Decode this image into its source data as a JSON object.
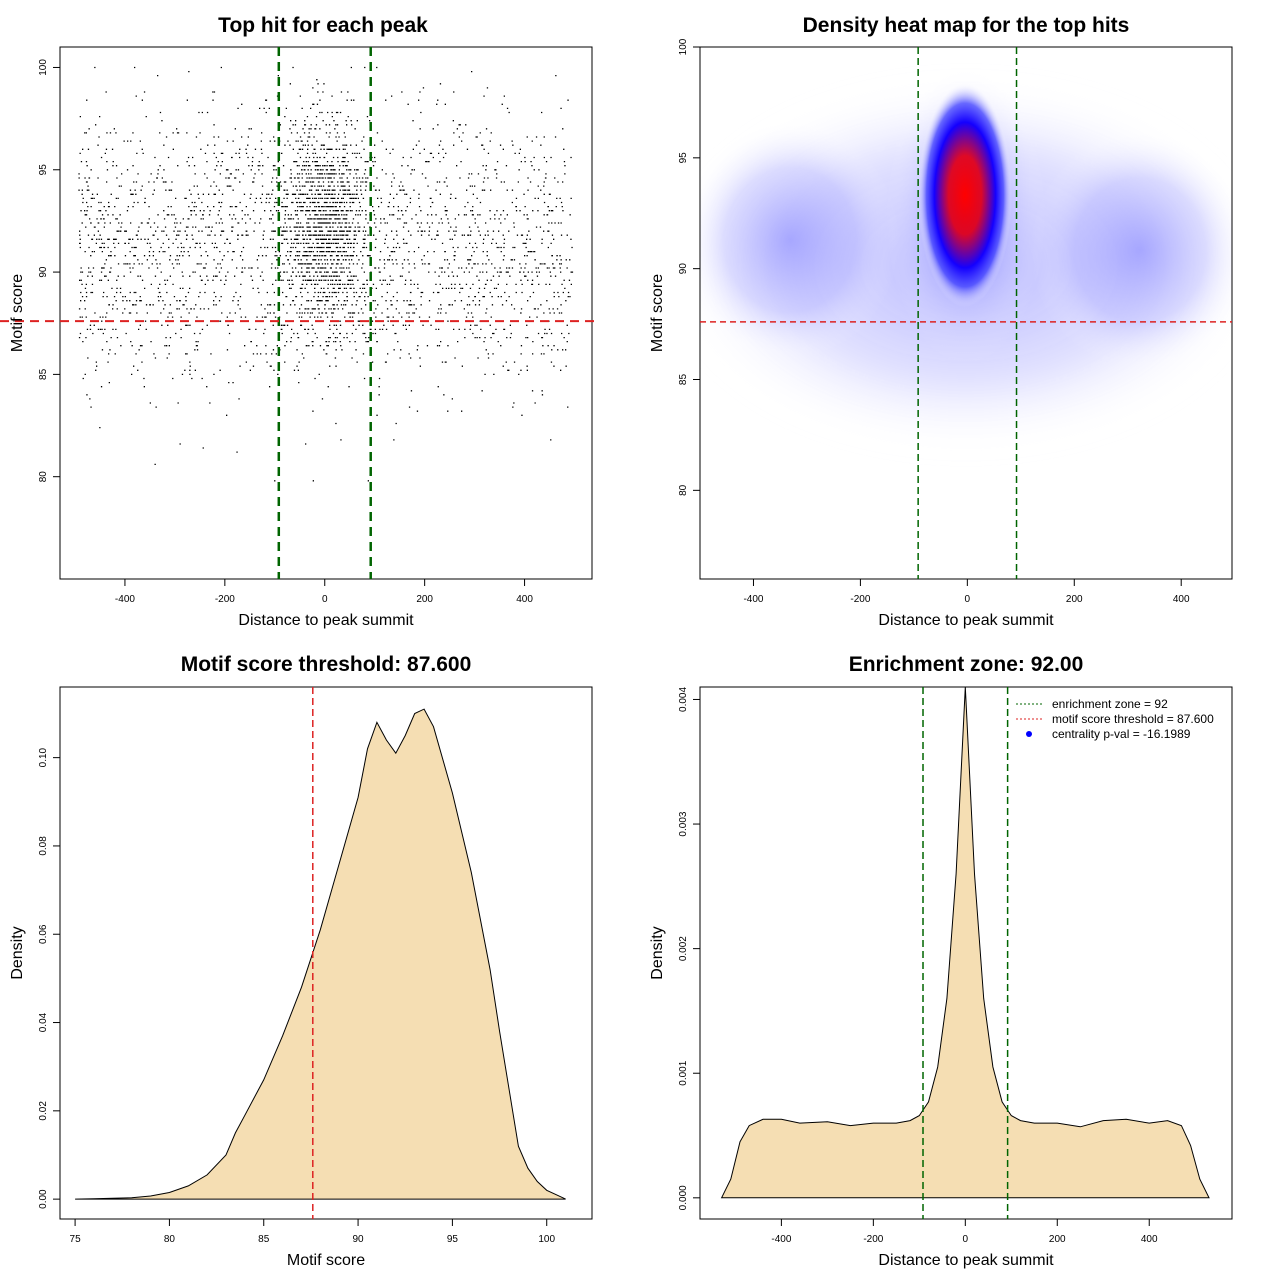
{
  "colors": {
    "threshold": "#dd2222",
    "zone": "#006400",
    "fill": "#f5deb3",
    "point": "#000000",
    "heat_low": "#ffffff",
    "heat_mid": "#0000ff",
    "heat_high": "#ff0000"
  },
  "chart_data": [
    {
      "type": "scatter",
      "title": "Top hit for each peak",
      "xlabel": "Distance to peak summit",
      "ylabel": "Motif score",
      "xlim": [
        -530,
        535
      ],
      "ylim": [
        75.0,
        101.0
      ],
      "xticks": [
        "-400",
        "-200",
        "0",
        "200",
        "400"
      ],
      "yticks": [
        "80",
        "85",
        "90",
        "95",
        "100"
      ],
      "threshold_y": 87.6,
      "zone_x": [
        -92,
        92
      ]
    },
    {
      "type": "heatmap",
      "title": "Density heat map for the top hits",
      "xlabel": "Distance to peak summit",
      "ylabel": "Motif score",
      "xlim": [
        -500,
        495
      ],
      "ylim": [
        76.0,
        100.0
      ],
      "xticks": [
        "-400",
        "-200",
        "0",
        "200",
        "400"
      ],
      "yticks": [
        "80",
        "85",
        "90",
        "95",
        "100"
      ],
      "threshold_y": 87.6,
      "zone_x": [
        -92,
        92
      ]
    },
    {
      "type": "area",
      "title": "Motif score threshold: 87.600",
      "xlabel": "Motif score",
      "ylabel": "Density",
      "xlim": [
        74.2,
        102.4
      ],
      "ylim": [
        -0.0045,
        0.116
      ],
      "xticks": [
        "75",
        "80",
        "85",
        "90",
        "95",
        "100"
      ],
      "yticks": [
        "0.00",
        "0.02",
        "0.04",
        "0.06",
        "0.08",
        "0.10"
      ],
      "threshold_x": 87.6,
      "x": [
        75,
        76,
        77,
        78,
        79,
        80,
        81,
        82,
        83,
        83.5,
        84,
        85,
        86,
        87,
        88,
        89,
        90,
        90.5,
        91,
        91.5,
        92,
        92.5,
        93,
        93.5,
        94,
        95,
        96,
        97,
        97.5,
        98,
        98.5,
        99,
        99.5,
        100,
        100.5,
        101
      ],
      "y": [
        0.0,
        0.0001,
        0.0002,
        0.0003,
        0.0007,
        0.0015,
        0.003,
        0.0055,
        0.01,
        0.015,
        0.019,
        0.027,
        0.037,
        0.048,
        0.061,
        0.076,
        0.091,
        0.102,
        0.108,
        0.104,
        0.101,
        0.105,
        0.11,
        0.111,
        0.107,
        0.092,
        0.074,
        0.052,
        0.038,
        0.025,
        0.012,
        0.007,
        0.004,
        0.002,
        0.001,
        0.0
      ]
    },
    {
      "type": "area",
      "title": "Enrichment zone: 92.00",
      "xlabel": "Distance to peak summit",
      "ylabel": "Density",
      "xlim": [
        -577,
        580
      ],
      "ylim": [
        -0.00017,
        0.0041
      ],
      "xticks": [
        "-400",
        "-200",
        "0",
        "200",
        "400"
      ],
      "yticks": [
        "0.000",
        "0.001",
        "0.002",
        "0.003",
        "0.004"
      ],
      "zone_x": [
        -92,
        92
      ],
      "x": [
        -530,
        -510,
        -490,
        -470,
        -440,
        -400,
        -360,
        -300,
        -250,
        -200,
        -150,
        -120,
        -100,
        -80,
        -60,
        -40,
        -20,
        0,
        20,
        40,
        60,
        80,
        100,
        120,
        150,
        200,
        250,
        300,
        350,
        400,
        440,
        470,
        490,
        510,
        530
      ],
      "y": [
        0.0,
        0.00015,
        0.00045,
        0.00058,
        0.00063,
        0.00063,
        0.0006,
        0.00061,
        0.00058,
        0.0006,
        0.0006,
        0.00062,
        0.00066,
        0.00077,
        0.00105,
        0.0016,
        0.0026,
        0.0041,
        0.0026,
        0.0016,
        0.00105,
        0.00077,
        0.00066,
        0.00062,
        0.0006,
        0.0006,
        0.00057,
        0.00062,
        0.00063,
        0.0006,
        0.00062,
        0.00058,
        0.00042,
        0.00015,
        0.0
      ],
      "legend": {
        "placement": "top-right",
        "entries": [
          "enrichment zone = 92",
          "motif score threshold = 87.600",
          "centrality p-val = -16.1989"
        ]
      }
    }
  ]
}
